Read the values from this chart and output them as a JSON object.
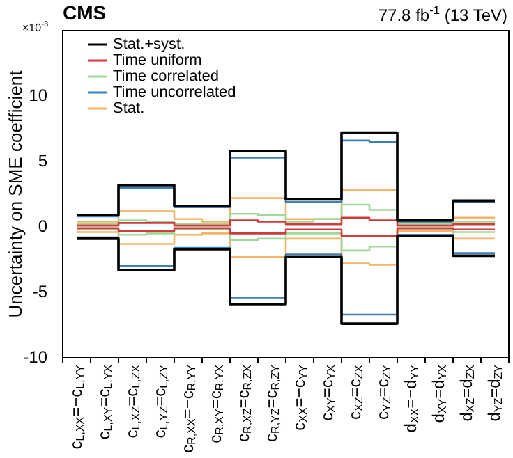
{
  "chart_data": {
    "type": "step",
    "title": "CMS",
    "subtitle": "77.8 fb$^{-1}$ (13 TeV)",
    "ylabel": "Uncertainty on SME coefficient",
    "annotations": [
      "×10$^{-3}$"
    ],
    "categories": [
      "c$_{L,XX}$=−c$_{L,YY}$",
      "c$_{L,XY}$=c$_{L,YX}$",
      "c$_{L,XZ}$=c$_{L,ZX}$",
      "c$_{L,YZ}$=c$_{L,ZY}$",
      "c$_{R,XX}$=−c$_{R,YY}$",
      "c$_{R,XY}$=c$_{R,YX}$",
      "c$_{R,XZ}$=c$_{R,ZX}$",
      "c$_{R,YZ}$=c$_{R,ZY}$",
      "c$_{XX}$=−c$_{YY}$",
      "c$_{XY}$=c$_{YX}$",
      "c$_{XZ}$=c$_{ZX}$",
      "c$_{YZ}$=c$_{ZY}$",
      "d$_{XX}$=−d$_{YY}$",
      "d$_{XY}$=d$_{YX}$",
      "d$_{XZ}$=d$_{ZX}$",
      "d$_{YZ}$=d$_{ZY}$"
    ],
    "series": [
      {
        "name": "Stat.+syst.",
        "color": "#000000",
        "values": [
          0.9,
          0.9,
          3.2,
          3.2,
          1.6,
          1.6,
          5.8,
          5.8,
          2.1,
          2.1,
          7.2,
          7.2,
          0.5,
          0.5,
          2.0,
          2.0
        ]
      },
      {
        "color": "#000000",
        "values": [
          -0.9,
          -0.9,
          -3.3,
          -3.3,
          -1.7,
          -1.7,
          -5.9,
          -5.9,
          -2.3,
          -2.3,
          -7.4,
          -7.4,
          -0.7,
          -0.7,
          -2.2,
          -2.2
        ]
      },
      {
        "name": "Time uniform",
        "color": "#d03a3a",
        "values": [
          0.1,
          0.1,
          0.3,
          0.3,
          0.1,
          0.1,
          0.5,
          0.4,
          0.2,
          0.2,
          0.7,
          0.5,
          0.1,
          0.1,
          0.2,
          0.2
        ]
      },
      {
        "color": "#d03a3a",
        "values": [
          -0.1,
          -0.1,
          -0.3,
          -0.3,
          -0.1,
          -0.1,
          -0.5,
          -0.5,
          -0.2,
          -0.2,
          -0.7,
          -0.7,
          -0.1,
          -0.1,
          -0.2,
          -0.2
        ]
      },
      {
        "name": "Time correlated",
        "color": "#a0d89a",
        "values": [
          0.2,
          0.2,
          0.5,
          0.4,
          0.2,
          0.2,
          1.0,
          0.9,
          0.4,
          0.6,
          1.7,
          1.3,
          0.2,
          0.2,
          0.4,
          0.4
        ]
      },
      {
        "color": "#a0d89a",
        "values": [
          -0.2,
          -0.2,
          -0.6,
          -0.5,
          -0.2,
          -0.2,
          -1.0,
          -0.9,
          -0.5,
          -0.5,
          -1.8,
          -1.5,
          -0.2,
          -0.2,
          -0.4,
          -0.4
        ]
      },
      {
        "name": "Time uncorrelated",
        "color": "#3c80b8",
        "values": [
          0.8,
          0.8,
          3.0,
          3.0,
          1.5,
          1.5,
          5.3,
          5.3,
          1.9,
          1.9,
          6.6,
          6.5,
          0.4,
          0.4,
          1.9,
          1.9
        ]
      },
      {
        "color": "#3c80b8",
        "values": [
          -0.8,
          -0.8,
          -3.0,
          -3.0,
          -1.6,
          -1.6,
          -5.4,
          -5.4,
          -2.1,
          -2.1,
          -6.7,
          -6.7,
          -0.6,
          -0.6,
          -2.0,
          -2.0
        ]
      },
      {
        "name": "Stat.",
        "color": "#f5b466",
        "values": [
          0.4,
          0.4,
          1.2,
          1.2,
          0.6,
          0.4,
          2.2,
          2.2,
          0.6,
          0.6,
          2.8,
          2.8,
          0.3,
          0.3,
          0.7,
          0.7
        ]
      },
      {
        "color": "#f5b466",
        "values": [
          -0.4,
          -0.4,
          -1.3,
          -1.3,
          -0.6,
          -0.5,
          -2.3,
          -2.3,
          -0.9,
          -0.9,
          -2.8,
          -2.9,
          -0.3,
          -0.3,
          -0.9,
          -0.9
        ]
      }
    ],
    "ylim": [
      -10,
      15
    ],
    "yticks": [
      -10,
      -5,
      0,
      5,
      10
    ],
    "legend": "top left"
  }
}
